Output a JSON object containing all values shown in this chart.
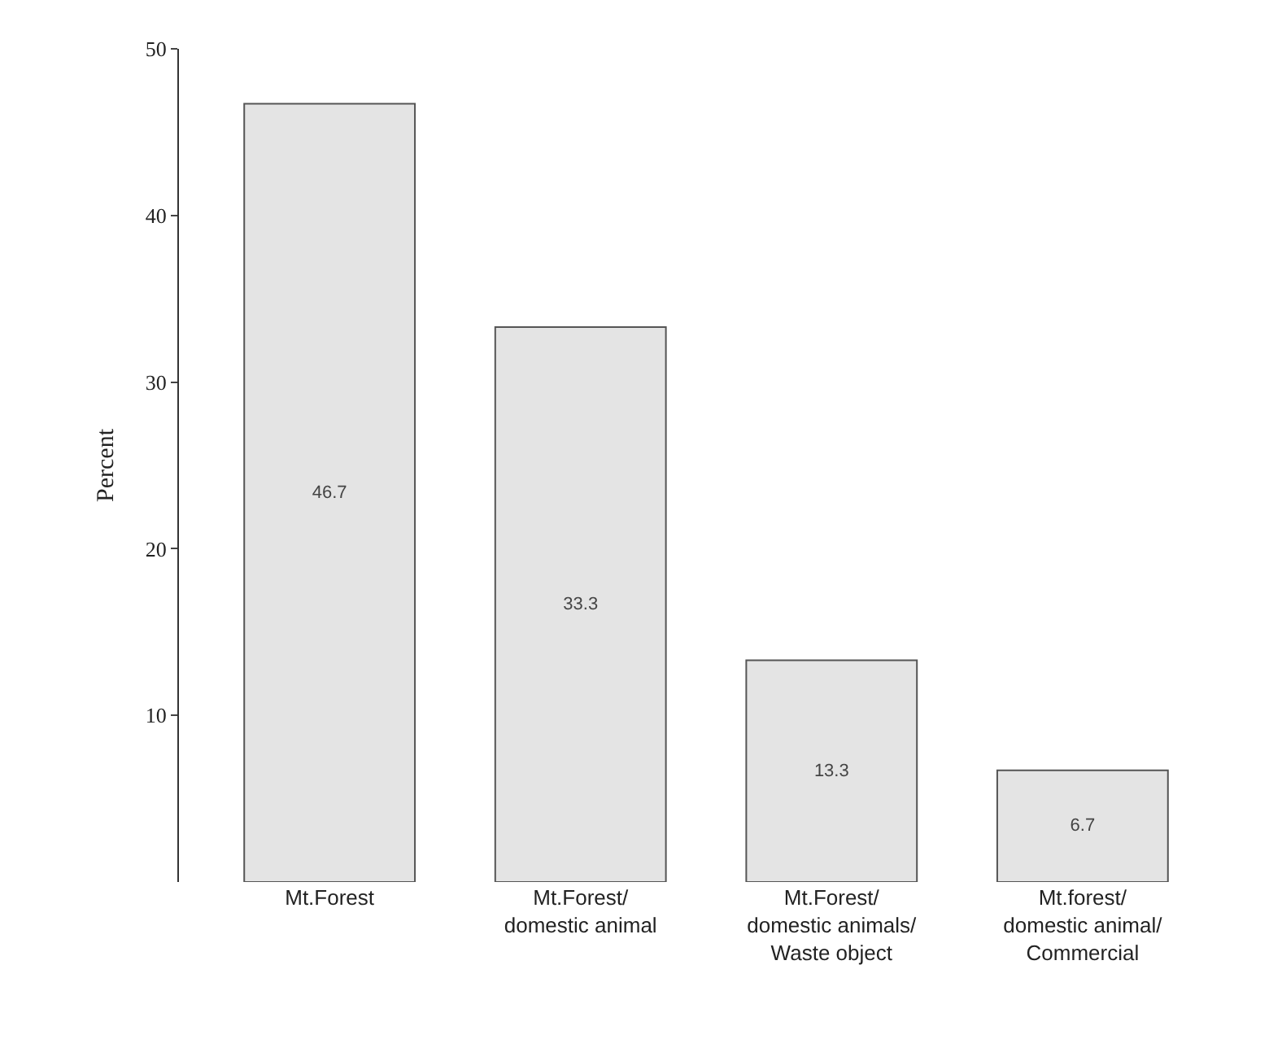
{
  "chart_data": {
    "type": "bar",
    "ylabel": "Percent",
    "categories": [
      "Mt.Forest",
      "Mt.Forest/domestic animal",
      "Mt.Forest/domestic animals/Waste object",
      "Mt.forest/domestic animal/Commercial"
    ],
    "values": [
      46.7,
      33.3,
      13.3,
      6.7
    ],
    "color": "#e4e4e4",
    "ylim": [
      0,
      50
    ],
    "yticks": [
      10,
      20,
      30,
      40,
      50
    ],
    "data_labels": true
  }
}
